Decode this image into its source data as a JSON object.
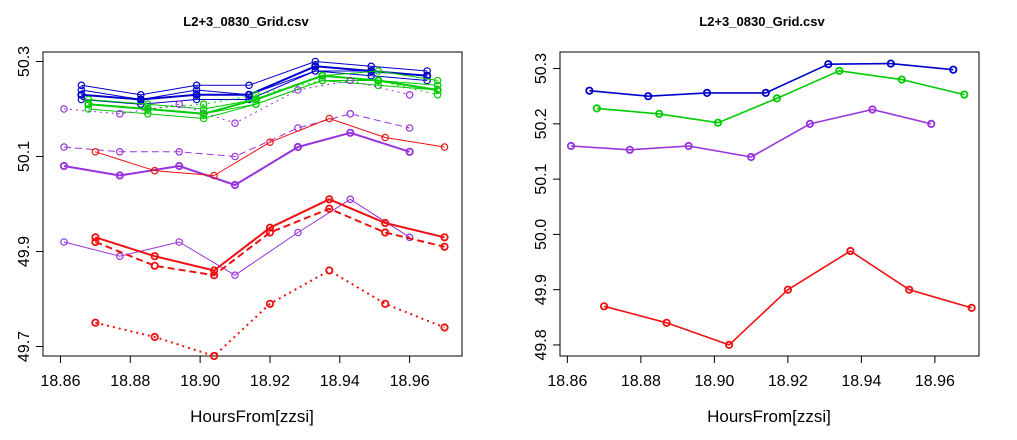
{
  "chart_data": [
    {
      "type": "line",
      "title": "L2+3_0830_Grid.csv",
      "xlabel": "HoursFrom[zzsi]",
      "ylabel": "",
      "xlim": [
        18.855,
        18.975
      ],
      "ylim": [
        49.68,
        50.32
      ],
      "xticks": [
        "18.86",
        "18.88",
        "18.90",
        "18.92",
        "18.94",
        "18.96"
      ],
      "yticks": [
        "49.7",
        "49.9",
        "50.1",
        "50.3"
      ],
      "grid": false,
      "series": [
        {
          "color": "#0000cc",
          "style": "solid",
          "width": 1,
          "x": [
            18.866,
            18.883,
            18.899,
            18.914,
            18.933,
            18.949,
            18.965
          ],
          "y": [
            50.25,
            50.23,
            50.25,
            50.25,
            50.3,
            50.29,
            50.28
          ]
        },
        {
          "color": "#0000cc",
          "style": "solid",
          "width": 1,
          "x": [
            18.866,
            18.883,
            18.899,
            18.914,
            18.933,
            18.949,
            18.965
          ],
          "y": [
            50.24,
            50.22,
            50.24,
            50.23,
            50.29,
            50.28,
            50.27
          ]
        },
        {
          "color": "#0000cc",
          "style": "solid",
          "width": 1,
          "x": [
            18.866,
            18.883,
            18.899,
            18.914,
            18.933,
            18.949,
            18.965
          ],
          "y": [
            50.23,
            50.22,
            50.23,
            50.23,
            50.28,
            50.28,
            50.27
          ]
        },
        {
          "color": "#0000cc",
          "style": "solid",
          "width": 1,
          "x": [
            18.866,
            18.883,
            18.899,
            18.914,
            18.933,
            18.949,
            18.965
          ],
          "y": [
            50.22,
            50.21,
            50.22,
            50.22,
            50.28,
            50.27,
            50.26
          ]
        },
        {
          "color": "#0000cc",
          "style": "solid",
          "width": 2,
          "x": [
            18.866,
            18.883,
            18.899,
            18.914,
            18.933,
            18.949,
            18.965
          ],
          "y": [
            50.23,
            50.22,
            50.23,
            50.23,
            50.29,
            50.28,
            50.27
          ]
        },
        {
          "color": "#00cc00",
          "style": "solid",
          "width": 1,
          "x": [
            18.868,
            18.885,
            18.901,
            18.916,
            18.935,
            18.951,
            18.968
          ],
          "y": [
            50.22,
            50.21,
            50.2,
            50.22,
            50.27,
            50.28,
            50.26
          ]
        },
        {
          "color": "#00cc00",
          "style": "solid",
          "width": 1,
          "x": [
            18.868,
            18.885,
            18.901,
            18.916,
            18.935,
            18.951,
            18.968
          ],
          "y": [
            50.21,
            50.2,
            50.19,
            50.21,
            50.26,
            50.26,
            50.25
          ]
        },
        {
          "color": "#00cc00",
          "style": "solid",
          "width": 1,
          "x": [
            18.868,
            18.885,
            18.901,
            18.916,
            18.935,
            18.951,
            18.968
          ],
          "y": [
            50.2,
            50.19,
            50.18,
            50.21,
            50.26,
            50.25,
            50.24
          ]
        },
        {
          "color": "#00cc00",
          "style": "dashed",
          "width": 1,
          "x": [
            18.868,
            18.885,
            18.901,
            18.916,
            18.935,
            18.951,
            18.968
          ],
          "y": [
            50.21,
            50.2,
            50.19,
            50.22,
            50.27,
            50.26,
            50.24
          ]
        },
        {
          "color": "#00cc00",
          "style": "dotted",
          "width": 1,
          "x": [
            18.868,
            18.885,
            18.901,
            18.916,
            18.935,
            18.951,
            18.968
          ],
          "y": [
            50.21,
            50.2,
            50.21,
            50.23,
            50.26,
            50.26,
            50.23
          ]
        },
        {
          "color": "#00cc00",
          "style": "solid",
          "width": 2,
          "x": [
            18.868,
            18.885,
            18.901,
            18.916,
            18.935,
            18.951,
            18.968
          ],
          "y": [
            50.21,
            50.2,
            50.19,
            50.22,
            50.27,
            50.26,
            50.24
          ]
        },
        {
          "color": "#9933dd",
          "style": "solid",
          "width": 2,
          "x": [
            18.861,
            18.877,
            18.894,
            18.91,
            18.928,
            18.943,
            18.96
          ],
          "y": [
            50.08,
            50.06,
            50.08,
            50.04,
            50.12,
            50.15,
            50.11
          ]
        },
        {
          "color": "#9933dd",
          "style": "dashed",
          "width": 1,
          "x": [
            18.861,
            18.877,
            18.894,
            18.91,
            18.928,
            18.943,
            18.96
          ],
          "y": [
            50.12,
            50.11,
            50.11,
            50.1,
            50.16,
            50.19,
            50.16
          ]
        },
        {
          "color": "#9933dd",
          "style": "dotted",
          "width": 1,
          "x": [
            18.861,
            18.877,
            18.894,
            18.91,
            18.928,
            18.943,
            18.96
          ],
          "y": [
            50.2,
            50.19,
            50.21,
            50.17,
            50.24,
            50.26,
            50.23
          ]
        },
        {
          "color": "#9933dd",
          "style": "solid",
          "width": 1,
          "x": [
            18.861,
            18.877,
            18.894,
            18.91,
            18.928,
            18.943,
            18.96
          ],
          "y": [
            49.92,
            49.89,
            49.92,
            49.85,
            49.94,
            50.01,
            49.93
          ]
        },
        {
          "color": "#ee1111",
          "style": "solid",
          "width": 1,
          "x": [
            18.87,
            18.887,
            18.904,
            18.92,
            18.937,
            18.953,
            18.97
          ],
          "y": [
            50.11,
            50.07,
            50.06,
            50.13,
            50.18,
            50.14,
            50.12
          ]
        },
        {
          "color": "#ee1111",
          "style": "solid",
          "width": 2,
          "x": [
            18.87,
            18.887,
            18.904,
            18.92,
            18.937,
            18.953,
            18.97
          ],
          "y": [
            49.93,
            49.89,
            49.86,
            49.95,
            50.01,
            49.96,
            49.93
          ]
        },
        {
          "color": "#ee1111",
          "style": "dashed",
          "width": 2,
          "x": [
            18.87,
            18.887,
            18.904,
            18.92,
            18.937,
            18.953,
            18.97
          ],
          "y": [
            49.92,
            49.87,
            49.85,
            49.94,
            49.99,
            49.94,
            49.91
          ]
        },
        {
          "color": "#ee1111",
          "style": "dotted",
          "width": 2,
          "x": [
            18.87,
            18.887,
            18.904,
            18.92,
            18.937,
            18.953,
            18.97
          ],
          "y": [
            49.75,
            49.72,
            49.68,
            49.79,
            49.86,
            49.79,
            49.74
          ]
        }
      ]
    },
    {
      "type": "line",
      "title": "L2+3_0830_Grid.csv",
      "xlabel": "HoursFrom[zzsi]",
      "ylabel": "",
      "xlim": [
        18.858,
        18.972
      ],
      "ylim": [
        49.78,
        50.33
      ],
      "xticks": [
        "18.86",
        "18.88",
        "18.90",
        "18.92",
        "18.94",
        "18.96"
      ],
      "yticks": [
        "49.8",
        "49.9",
        "50.0",
        "50.1",
        "50.2",
        "50.3"
      ],
      "grid": false,
      "series": [
        {
          "color": "#0000cc",
          "style": "solid",
          "width": 1.6,
          "x": [
            18.866,
            18.882,
            18.898,
            18.914,
            18.931,
            18.948,
            18.965
          ],
          "y": [
            50.26,
            50.25,
            50.256,
            50.256,
            50.308,
            50.309,
            50.298
          ]
        },
        {
          "color": "#00cc00",
          "style": "solid",
          "width": 1.6,
          "x": [
            18.868,
            18.885,
            18.901,
            18.917,
            18.934,
            18.951,
            18.968
          ],
          "y": [
            50.228,
            50.218,
            50.202,
            50.246,
            50.296,
            50.28,
            50.253
          ]
        },
        {
          "color": "#9933dd",
          "style": "solid",
          "width": 1.6,
          "x": [
            18.861,
            18.877,
            18.893,
            18.91,
            18.926,
            18.943,
            18.959
          ],
          "y": [
            50.16,
            50.153,
            50.16,
            50.14,
            50.2,
            50.226,
            50.2
          ]
        },
        {
          "color": "#ee1111",
          "style": "solid",
          "width": 1.6,
          "x": [
            18.87,
            18.887,
            18.904,
            18.92,
            18.937,
            18.953,
            18.97
          ],
          "y": [
            49.87,
            49.84,
            49.8,
            49.9,
            49.97,
            49.9,
            49.867
          ]
        }
      ]
    }
  ]
}
